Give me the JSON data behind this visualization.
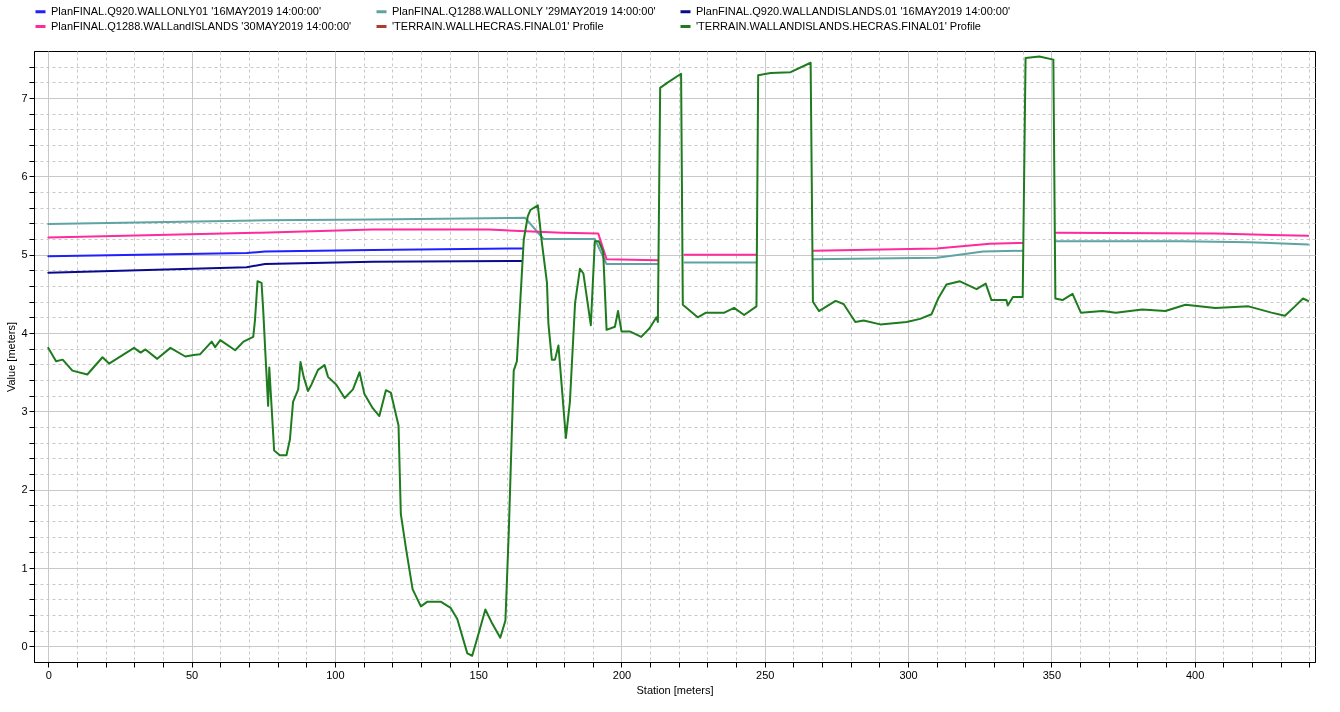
{
  "chart_data": {
    "type": "line",
    "xlabel": "Station [meters]",
    "ylabel": "Value [meters]",
    "xlim": [
      -5,
      442
    ],
    "ylim": [
      -0.2,
      7.6
    ],
    "xticks": [
      0,
      {
        "value": 10,
        "label": null
      },
      {
        "value": 20,
        "label": null
      },
      {
        "value": 30,
        "label": null
      },
      {
        "value": 40,
        "label": null
      },
      50,
      {
        "value": 60,
        "label": null
      },
      {
        "value": 70,
        "label": null
      },
      {
        "value": 80,
        "label": null
      },
      {
        "value": 90,
        "label": null
      },
      100,
      {
        "value": 110,
        "label": null
      },
      {
        "value": 120,
        "label": null
      },
      {
        "value": 130,
        "label": null
      },
      {
        "value": 140,
        "label": null
      },
      150,
      {
        "value": 160,
        "label": null
      },
      {
        "value": 170,
        "label": null
      },
      {
        "value": 180,
        "label": null
      },
      {
        "value": 190,
        "label": null
      },
      200,
      {
        "value": 210,
        "label": null
      },
      {
        "value": 220,
        "label": null
      },
      {
        "value": 230,
        "label": null
      },
      {
        "value": 240,
        "label": null
      },
      250,
      {
        "value": 260,
        "label": null
      },
      {
        "value": 270,
        "label": null
      },
      {
        "value": 280,
        "label": null
      },
      {
        "value": 290,
        "label": null
      },
      300,
      {
        "value": 310,
        "label": null
      },
      {
        "value": 320,
        "label": null
      },
      {
        "value": 330,
        "label": null
      },
      {
        "value": 340,
        "label": null
      },
      350,
      {
        "value": 360,
        "label": null
      },
      {
        "value": 370,
        "label": null
      },
      {
        "value": 380,
        "label": null
      },
      {
        "value": 390,
        "label": null
      },
      400,
      {
        "value": 410,
        "label": null
      },
      {
        "value": 420,
        "label": null
      },
      {
        "value": 430,
        "label": null
      },
      {
        "value": 440,
        "label": null
      }
    ],
    "yticks": [
      0,
      {
        "value": 0.2,
        "label": null
      },
      {
        "value": 0.4,
        "label": null
      },
      {
        "value": 0.6,
        "label": null
      },
      {
        "value": 0.8,
        "label": null
      },
      1,
      {
        "value": 1.2,
        "label": null
      },
      {
        "value": 1.4,
        "label": null
      },
      {
        "value": 1.6,
        "label": null
      },
      {
        "value": 1.8,
        "label": null
      },
      2,
      {
        "value": 2.2,
        "label": null
      },
      {
        "value": 2.4,
        "label": null
      },
      {
        "value": 2.6,
        "label": null
      },
      {
        "value": 2.8,
        "label": null
      },
      3,
      {
        "value": 3.2,
        "label": null
      },
      {
        "value": 3.4,
        "label": null
      },
      {
        "value": 3.6,
        "label": null
      },
      {
        "value": 3.8,
        "label": null
      },
      4,
      {
        "value": 4.2,
        "label": null
      },
      {
        "value": 4.4,
        "label": null
      },
      {
        "value": 4.6,
        "label": null
      },
      {
        "value": 4.8,
        "label": null
      },
      5,
      {
        "value": 5.2,
        "label": null
      },
      {
        "value": 5.4,
        "label": null
      },
      {
        "value": 5.6,
        "label": null
      },
      {
        "value": 5.8,
        "label": null
      },
      6,
      {
        "value": 6.2,
        "label": null
      },
      {
        "value": 6.4,
        "label": null
      },
      {
        "value": 6.6,
        "label": null
      },
      {
        "value": 6.8,
        "label": null
      },
      7,
      {
        "value": 7.2,
        "label": null
      },
      {
        "value": 7.4,
        "label": null
      }
    ],
    "grid": true,
    "legend": "top",
    "line_style": "solid",
    "marker": "none",
    "series": [
      {
        "name": "PlanFINAL.Q920.WALLONLY01 '16MAY2019 14:00:00'",
        "color": "#1f1fff",
        "x": [
          0,
          69.2,
          75.6,
          113.2,
          165.3
        ],
        "values": [
          4.98,
          5.02,
          5.04,
          5.06,
          5.08
        ]
      },
      {
        "name": "PlanFINAL.Q1288.WALLONLY '29MAY2019 14:00:00'",
        "color": "#5fa3a3",
        "x": [
          0,
          76.2,
          113.2,
          166.4,
          172.8,
          190.7,
          194.8,
          212.7,
          217,
          222,
          247,
          257,
          267,
          310,
          326.2,
          340,
          346,
          351.6,
          395.6,
          418.8,
          439.6
        ],
        "values": [
          5.39,
          5.44,
          5.45,
          5.47,
          5.2,
          5.2,
          4.88,
          4.88,
          null,
          4.9,
          4.9,
          null,
          4.94,
          4.96,
          5.04,
          5.05,
          null,
          5.17,
          5.17,
          5.16,
          5.13
        ]
      },
      {
        "name": "PlanFINAL.Q920.WALLANDISLANDS.01 '16MAY2019 14:00:00'",
        "color": "#0a0a8c",
        "x": [
          0,
          69.2,
          75.6,
          113.2,
          165.3
        ],
        "values": [
          4.77,
          4.84,
          4.88,
          4.91,
          4.92
        ]
      },
      {
        "name": "PlanFINAL.Q1288.WALLandISLANDS '30MAY2019 14:00:00'",
        "color": "#ff2a9b",
        "x": [
          0,
          73.9,
          113.2,
          153.7,
          179.2,
          191.9,
          194.8,
          212.7,
          217,
          222,
          247,
          257,
          267,
          310,
          328.5,
          340,
          346,
          351.6,
          407.2,
          439.6
        ],
        "values": [
          5.22,
          5.28,
          5.32,
          5.32,
          5.28,
          5.27,
          4.94,
          4.93,
          null,
          5.0,
          5.0,
          null,
          5.05,
          5.08,
          5.14,
          5.15,
          null,
          5.28,
          5.27,
          5.24
        ]
      },
      {
        "name": "'TERRAIN.WALLHECRAS.FINAL01' Profile",
        "color": "#b03a2e"
      },
      {
        "name": "'TERRAIN.WALLANDISLANDS.HECRAS.FINAL01' Profile",
        "color": "#1e7b1e",
        "x": [
          0,
          2.7,
          5.0,
          8.4,
          13.6,
          18.9,
          21.2,
          29.9,
          32.2,
          33.9,
          38.0,
          42.6,
          47.8,
          50.7,
          53.0,
          57.0,
          58.2,
          60.0,
          65.2,
          68.1,
          71.5,
          72.1,
          73.0,
          74.4,
          75.0,
          75.8,
          76.7,
          77.1,
          78.8,
          80.8,
          83.1,
          84.3,
          85.4,
          87.2,
          88.0,
          89.1,
          90.6,
          91.8,
          94.1,
          96.4,
          97.6,
          100.5,
          103.4,
          106.3,
          108.6,
          110.3,
          113.2,
          115.5,
          117.8,
          119.5,
          122.2,
          123.0,
          124.8,
          127.1,
          130.0,
          132.3,
          136.9,
          140.4,
          142.7,
          146.2,
          147.9,
          150.2,
          152.5,
          154.9,
          157.7,
          159.5,
          160.7,
          162.4,
          163.5,
          165.9,
          167.3,
          168.2,
          170.8,
          172.2,
          174.0,
          174.5,
          175.7,
          176.8,
          178.0,
          179.2,
          180.6,
          182.0,
          183.8,
          185.5,
          186.7,
          189.3,
          190.7,
          192.1,
          193.6,
          194.8,
          197.7,
          198.8,
          200.0,
          202.9,
          206.9,
          209.8,
          212.2,
          212.7,
          213.5,
          216.2,
          220.8,
          221.4,
          226.6,
          229.5,
          235.9,
          239.3,
          242.8,
          247.1,
          247.7,
          252.1,
          259.0,
          266.0,
          266.8,
          268.9,
          274.7,
          277.5,
          281.6,
          284.5,
          290.3,
          299.5,
          304.2,
          308.2,
          310.5,
          313.4,
          318.1,
          323.9,
          327.1,
          329.1,
          334.3,
          334.8,
          336.6,
          340.0,
          341.0,
          345.8,
          350.7,
          351.4,
          353.9,
          357.4,
          360.3,
          367.8,
          372.5,
          381.7,
          389.8,
          396.8,
          407.2,
          418.8,
          426.8,
          431.5,
          435.0,
          437.8,
          439.6
        ],
        "values": [
          3.81,
          3.64,
          3.66,
          3.52,
          3.47,
          3.69,
          3.61,
          3.81,
          3.75,
          3.79,
          3.67,
          3.81,
          3.7,
          3.72,
          3.73,
          3.89,
          3.82,
          3.91,
          3.78,
          3.89,
          3.95,
          4.16,
          4.66,
          4.64,
          4.28,
          3.7,
          3.07,
          3.56,
          2.5,
          2.44,
          2.44,
          2.64,
          3.12,
          3.28,
          3.63,
          3.44,
          3.26,
          3.34,
          3.53,
          3.59,
          3.44,
          3.34,
          3.17,
          3.28,
          3.5,
          3.22,
          3.04,
          2.94,
          3.27,
          3.24,
          2.82,
          1.69,
          1.25,
          0.73,
          0.51,
          0.57,
          0.57,
          0.49,
          0.35,
          -0.09,
          -0.12,
          0.17,
          0.47,
          0.29,
          0.11,
          0.33,
          1.49,
          3.52,
          3.64,
          5.19,
          5.49,
          5.57,
          5.63,
          5.16,
          4.64,
          4.12,
          3.66,
          3.66,
          3.84,
          3.3,
          2.66,
          3.12,
          4.38,
          4.82,
          4.76,
          4.1,
          5.17,
          5.17,
          5.04,
          4.04,
          4.08,
          4.28,
          4.02,
          4.02,
          3.95,
          4.06,
          4.2,
          4.14,
          7.13,
          7.2,
          7.31,
          4.36,
          4.2,
          4.26,
          4.26,
          4.32,
          4.23,
          4.34,
          7.29,
          7.32,
          7.33,
          7.45,
          4.4,
          4.28,
          4.41,
          4.37,
          4.14,
          4.16,
          4.11,
          4.14,
          4.18,
          4.24,
          4.44,
          4.62,
          4.66,
          4.56,
          4.63,
          4.42,
          4.42,
          4.35,
          4.46,
          4.46,
          7.51,
          7.53,
          7.49,
          4.44,
          4.42,
          4.5,
          4.26,
          4.28,
          4.26,
          4.3,
          4.28,
          4.36,
          4.32,
          4.34,
          4.26,
          4.22,
          4.34,
          4.44,
          4.41
        ]
      }
    ]
  }
}
